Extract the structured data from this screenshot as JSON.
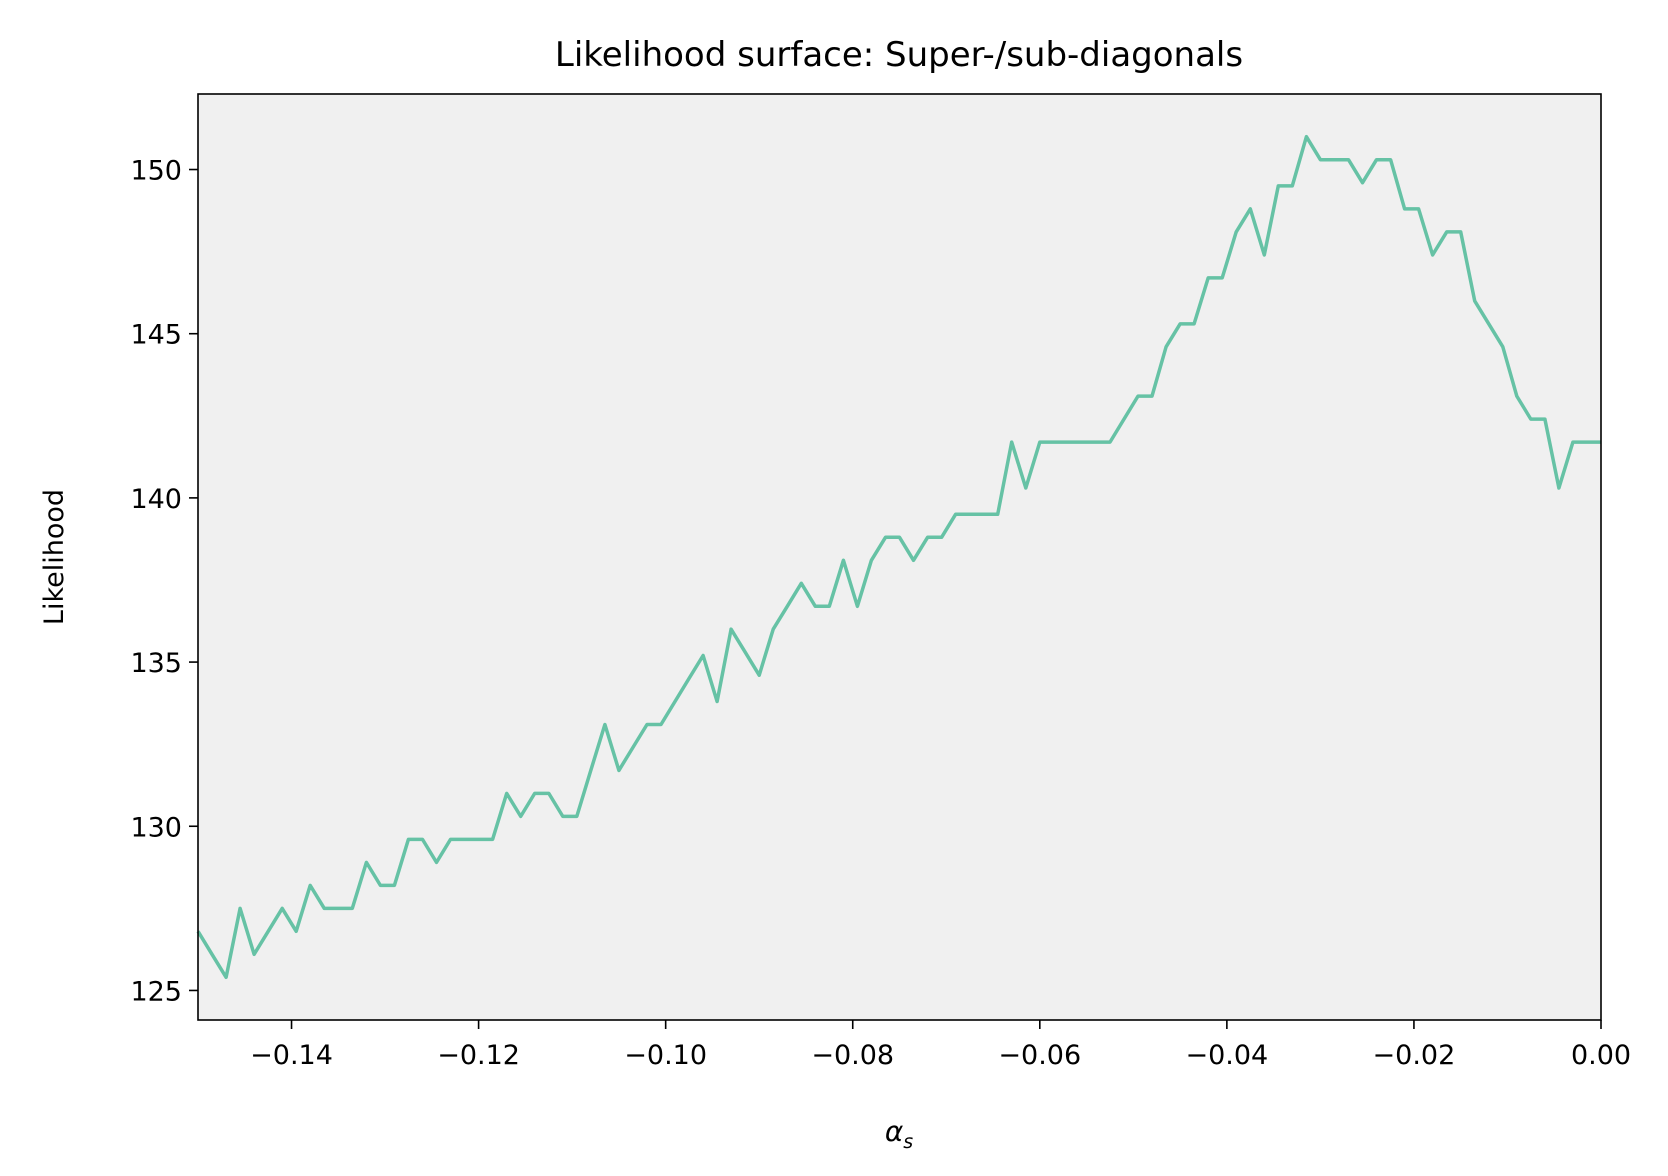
{
  "chart_data": {
    "type": "line",
    "title": "Likelihood surface: Super-/sub-diagonals",
    "xlabel_symbol": "α",
    "xlabel_subscript": "s",
    "ylabel": "Likelihood",
    "xlim": [
      -0.15,
      0.0
    ],
    "ylim": [
      124.1,
      152.3
    ],
    "xticks": [
      -0.14,
      -0.12,
      -0.1,
      -0.08,
      -0.06,
      -0.04,
      -0.02,
      0.0
    ],
    "xtick_labels": [
      "−0.14",
      "−0.12",
      "−0.10",
      "−0.08",
      "−0.06",
      "−0.04",
      "−0.02",
      "0.00"
    ],
    "yticks": [
      125,
      130,
      135,
      140,
      145,
      150
    ],
    "ytick_labels": [
      "125",
      "130",
      "135",
      "140",
      "145",
      "150"
    ],
    "grid": false,
    "legend": "none",
    "colors": {
      "line": "#66c2a5",
      "plot_background": "#f0f0f0",
      "figure_background": "#ffffff",
      "axes_edge": "#000000"
    },
    "series": [
      {
        "x": [
          -0.15,
          -0.1485,
          -0.147,
          -0.1455,
          -0.144,
          -0.1425,
          -0.141,
          -0.1395,
          -0.138,
          -0.1365,
          -0.135,
          -0.1335,
          -0.132,
          -0.1305,
          -0.129,
          -0.1275,
          -0.126,
          -0.1245,
          -0.123,
          -0.1215,
          -0.12,
          -0.1185,
          -0.117,
          -0.1155,
          -0.114,
          -0.1125,
          -0.111,
          -0.1095,
          -0.108,
          -0.1065,
          -0.105,
          -0.1035,
          -0.102,
          -0.1005,
          -0.099,
          -0.0975,
          -0.096,
          -0.0945,
          -0.093,
          -0.0915,
          -0.09,
          -0.0885,
          -0.087,
          -0.0855,
          -0.084,
          -0.0825,
          -0.081,
          -0.0795,
          -0.078,
          -0.0765,
          -0.075,
          -0.0735,
          -0.072,
          -0.0705,
          -0.069,
          -0.0675,
          -0.066,
          -0.0645,
          -0.063,
          -0.0615,
          -0.06,
          -0.0585,
          -0.057,
          -0.0555,
          -0.054,
          -0.0525,
          -0.051,
          -0.0495,
          -0.048,
          -0.0465,
          -0.045,
          -0.0435,
          -0.042,
          -0.0405,
          -0.039,
          -0.0375,
          -0.036,
          -0.0345,
          -0.033,
          -0.0315,
          -0.03,
          -0.0285,
          -0.027,
          -0.0255,
          -0.024,
          -0.0225,
          -0.021,
          -0.0195,
          -0.018,
          -0.0165,
          -0.015,
          -0.0135,
          -0.012,
          -0.0105,
          -0.009,
          -0.0075,
          -0.006,
          -0.0045,
          -0.003,
          -0.0015,
          0.0
        ],
        "y": [
          126.8,
          126.1,
          125.4,
          127.5,
          126.1,
          126.8,
          127.5,
          126.8,
          128.2,
          127.5,
          127.5,
          127.5,
          128.9,
          128.2,
          128.2,
          129.6,
          129.6,
          128.9,
          129.6,
          129.6,
          129.6,
          129.6,
          131.0,
          130.3,
          131.0,
          131.0,
          130.3,
          130.3,
          131.7,
          133.1,
          131.7,
          132.4,
          133.1,
          133.1,
          133.8,
          134.5,
          135.2,
          133.8,
          136.0,
          135.3,
          134.6,
          136.0,
          136.7,
          137.4,
          136.7,
          136.7,
          138.1,
          136.7,
          138.1,
          138.8,
          138.8,
          138.1,
          138.8,
          138.8,
          139.5,
          139.5,
          139.5,
          139.5,
          141.7,
          140.3,
          141.7,
          141.7,
          141.7,
          141.7,
          141.7,
          141.7,
          142.4,
          143.1,
          143.1,
          144.6,
          145.3,
          145.3,
          146.7,
          146.7,
          148.1,
          148.8,
          147.4,
          149.5,
          149.5,
          151.0,
          150.3,
          150.3,
          150.3,
          149.6,
          150.3,
          150.3,
          148.8,
          148.8,
          147.4,
          148.1,
          148.1,
          146.0,
          145.3,
          144.6,
          143.1,
          142.4,
          142.4,
          140.3,
          141.7,
          141.7,
          141.7
        ]
      }
    ]
  }
}
